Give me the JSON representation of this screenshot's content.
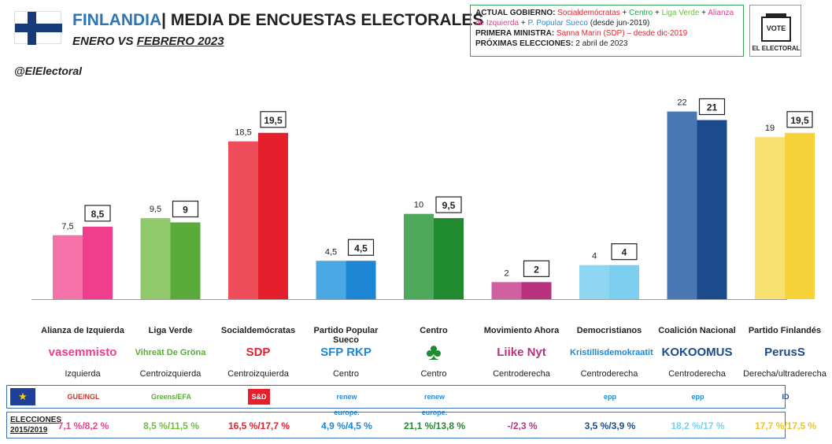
{
  "header": {
    "country": "FINLANDIA",
    "title_rest": "| MEDIA DE ENCUESTAS ELECTORALES",
    "subtitle_a": "ENERO",
    "subtitle_vs": " VS ",
    "subtitle_b": "FEBRERO 2023",
    "handle": "@ElElectoral"
  },
  "info": {
    "gov_label": "ACTUAL GOBIERNO:",
    "gov_parts": [
      {
        "text": "Socialdemócratas",
        "color": "#e8222e"
      },
      {
        "text": " + ",
        "color": "#222222"
      },
      {
        "text": "Centro",
        "color": "#22a34a"
      },
      {
        "text": " + ",
        "color": "#222222"
      },
      {
        "text": "Liga Verde",
        "color": "#6fbf3a"
      },
      {
        "text": " + ",
        "color": "#222222"
      },
      {
        "text": "Alianza de Izquierda",
        "color": "#e03c8c"
      },
      {
        "text": " + ",
        "color": "#222222"
      },
      {
        "text": "P. Popular Sueco",
        "color": "#2c8ad8"
      },
      {
        "text": " (desde jun-2019)",
        "color": "#222222"
      }
    ],
    "pm_label": "PRIMERA MINISTRA:",
    "pm_value": "Sanna Marin (SDP) – desde dic-2019",
    "next_label": "PRÓXIMAS ELECCIONES:",
    "next_value": "2 abril de 2023"
  },
  "logo": {
    "vote": "VOTE",
    "brand": "EL ELECTORAL"
  },
  "chart_data": {
    "type": "bar",
    "categories": [
      "Alianza de Izquierda",
      "Liga Verde",
      "Socialdemócratas",
      "Partido Popular Sueco",
      "Centro",
      "Movimiento Ahora",
      "Democristianos",
      "Coalición Nacional",
      "Partido Finlandés"
    ],
    "series": [
      {
        "values": [
          7.5,
          9.5,
          18.5,
          4.5,
          10,
          2,
          4,
          22,
          19
        ],
        "labels": [
          "7,5",
          "9,5",
          "18,5",
          "4,5",
          "10",
          "2",
          "4",
          "22",
          "19"
        ]
      },
      {
        "values": [
          8.5,
          9,
          19.5,
          4.5,
          9.5,
          2,
          4,
          21,
          19.5
        ],
        "labels": [
          "8,5",
          "9",
          "19,5",
          "4,5",
          "9,5",
          "2",
          "4",
          "21",
          "19,5"
        ]
      }
    ],
    "colors_jan": [
      "#f472a8",
      "#8fc96a",
      "#ee4d5a",
      "#4aa9e4",
      "#4fa95a",
      "#d0609f",
      "#8fd6f2",
      "#4a78b4",
      "#f8e070"
    ],
    "colors_feb": [
      "#ef3f8c",
      "#5aab3a",
      "#e61f2d",
      "#1d87d6",
      "#1f8a2e",
      "#b8327f",
      "#7ccfef",
      "#1b4b8c",
      "#f7d33a"
    ],
    "ylim": [
      0,
      24
    ]
  },
  "parties": [
    {
      "name": "Alianza de Izquierda",
      "logo": "vasemmisto",
      "logo_color": "#ef3f8c",
      "ideology": "Izquierda"
    },
    {
      "name": "Liga Verde",
      "logo": "Vihreät De Gröna",
      "logo_color": "#5aab3a",
      "ideology": "Centroizquierda"
    },
    {
      "name": "Socialdemócratas",
      "logo": "SDP",
      "logo_color": "#e61f2d",
      "ideology": "Centroizquierda"
    },
    {
      "name": "Partido Popular Sueco",
      "logo": "SFP RKP",
      "logo_color": "#1d87d6",
      "ideology": "Centro"
    },
    {
      "name": "Centro",
      "logo": "♣",
      "logo_color": "#1f8a2e",
      "ideology": "Centro"
    },
    {
      "name": "Movimiento Ahora",
      "logo": "Liike Nyt",
      "logo_color": "#b8327f",
      "ideology": "Centroderecha"
    },
    {
      "name": "Democristianos",
      "logo": "Kristillisdemokraatit",
      "logo_color": "#1d87d6",
      "ideology": "Centroderecha"
    },
    {
      "name": "Coalición Nacional",
      "logo": "KOKOOMUS",
      "logo_color": "#1b4b8c",
      "ideology": "Centroderecha"
    },
    {
      "name": "Partido Finlandés",
      "logo": "PerusS",
      "logo_color": "#1b4b8c",
      "ideology": "Derecha/ultraderecha"
    }
  ],
  "eu_groups": [
    {
      "label": "GUE/NGL",
      "color": "#c0392b"
    },
    {
      "label": "Greens/EFA",
      "color": "#5aab3a"
    },
    {
      "label": "S&D",
      "color": "#e61f2d"
    },
    {
      "label": "renew europe.",
      "color": "#2c8ad8"
    },
    {
      "label": "renew europe.",
      "color": "#2c8ad8"
    },
    {
      "label": "",
      "color": "#ffffff"
    },
    {
      "label": "epp",
      "color": "#1d87d6"
    },
    {
      "label": "epp",
      "color": "#1d87d6"
    },
    {
      "label": "ID",
      "color": "#1b4b8c"
    }
  ],
  "elections": {
    "label_1": "ELECCIONES",
    "label_2": "2015/2019",
    "values": [
      {
        "text": "7,1 %/8,2 %",
        "color": "#ef3f8c"
      },
      {
        "text": "8,5 %/11,5 %",
        "color": "#6fbf3a"
      },
      {
        "text": "16,5 %/17,7 %",
        "color": "#e61f2d"
      },
      {
        "text": "4,9 %/4,5 %",
        "color": "#1d87d6"
      },
      {
        "text": "21,1 %/13,8 %",
        "color": "#1f8a2e"
      },
      {
        "text": "-/2,3 %",
        "color": "#b8327f"
      },
      {
        "text": "3,5 %/3,9 %",
        "color": "#1b4b8c"
      },
      {
        "text": "18,2 %/17 %",
        "color": "#7ccfef"
      },
      {
        "text": "17,7 %/17,5 %",
        "color": "#f0c419"
      }
    ]
  }
}
